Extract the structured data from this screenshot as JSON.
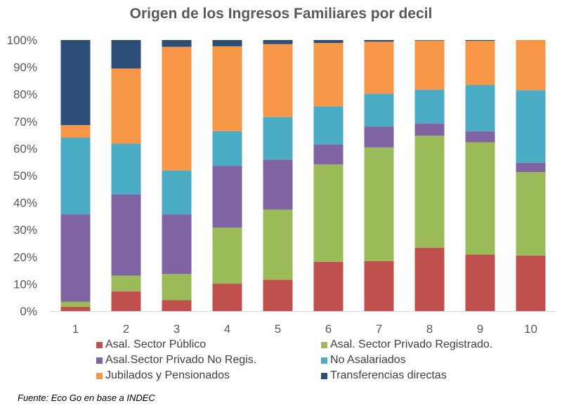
{
  "chart_data": {
    "type": "bar",
    "stacked": true,
    "percent_stacked": true,
    "title": "Origen de los Ingresos Familiares por decil",
    "xlabel": "",
    "ylabel": "",
    "ylim": [
      0,
      100
    ],
    "yticks": [
      "0%",
      "10%",
      "20%",
      "30%",
      "40%",
      "50%",
      "60%",
      "70%",
      "80%",
      "90%",
      "100%"
    ],
    "categories": [
      "1",
      "2",
      "3",
      "4",
      "5",
      "6",
      "7",
      "8",
      "9",
      "10"
    ],
    "grid": false,
    "legend_position": "bottom",
    "series": [
      {
        "name": "Asal. Sector Público",
        "color": "#c0504d",
        "values": [
          1.6,
          7.3,
          4.0,
          10.1,
          11.6,
          18.2,
          18.4,
          23.4,
          20.9,
          20.5
        ]
      },
      {
        "name": "Asal. Sector Privado Registrado.",
        "color": "#9bbb59",
        "values": [
          1.9,
          5.8,
          9.7,
          20.7,
          25.8,
          35.9,
          42.0,
          41.3,
          41.4,
          30.8
        ]
      },
      {
        "name": "Asal.Sector Privado No Regis.",
        "color": "#8064a2",
        "values": [
          32.2,
          30.0,
          22.0,
          22.8,
          18.5,
          7.4,
          7.7,
          4.5,
          4.1,
          3.4
        ]
      },
      {
        "name": "No Asalariados",
        "color": "#4bacc6",
        "values": [
          28.3,
          18.7,
          16.2,
          12.8,
          15.7,
          14.0,
          12.1,
          12.5,
          17.0,
          26.8
        ]
      },
      {
        "name": "Jubilados y Pensionados",
        "color": "#f79646",
        "values": [
          4.6,
          27.7,
          45.6,
          31.3,
          26.9,
          23.4,
          19.2,
          18.1,
          16.3,
          18.5
        ]
      },
      {
        "name": "Transferencias directas",
        "color": "#2c4d75",
        "values": [
          31.4,
          10.5,
          2.5,
          2.3,
          1.5,
          1.1,
          0.6,
          0.2,
          0.3,
          0.0
        ]
      }
    ]
  },
  "legend": {
    "items": [
      {
        "label": "Asal. Sector Público",
        "color": "#c0504d"
      },
      {
        "label": "Asal. Sector Privado Registrado.",
        "color": "#9bbb59"
      },
      {
        "label": "Asal.Sector Privado No Regis.",
        "color": "#8064a2"
      },
      {
        "label": "No Asalariados",
        "color": "#4bacc6"
      },
      {
        "label": "Jubilados y Pensionados",
        "color": "#f79646"
      },
      {
        "label": "Transferencias directas",
        "color": "#2c4d75"
      }
    ]
  },
  "source": "Fuente: Eco Go en base a INDEC"
}
